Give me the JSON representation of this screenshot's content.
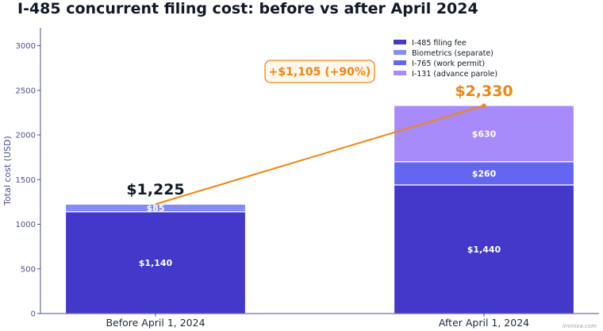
{
  "chart_data": {
    "type": "bar",
    "stacked": true,
    "title": "I-485 concurrent filing cost: before vs after April 2024",
    "xlabel": "",
    "ylabel": "Total cost (USD)",
    "ylim": [
      0,
      3200
    ],
    "yticks": [
      0,
      500,
      1000,
      1500,
      2000,
      2500,
      3000
    ],
    "grid": false,
    "legend_position": "top-right",
    "categories": [
      "Before April 1, 2024",
      "After April 1, 2024"
    ],
    "series": [
      {
        "name": "I-485 filing fee",
        "values": [
          1140,
          1440
        ],
        "labels": [
          "$1,140",
          "$1,440"
        ],
        "color": "#4338ca"
      },
      {
        "name": "Biometrics (separate)",
        "values": [
          85,
          0
        ],
        "labels": [
          "$85",
          ""
        ],
        "color": "#818cf8"
      },
      {
        "name": "I-765 (work permit)",
        "values": [
          0,
          260
        ],
        "labels": [
          "",
          "$260"
        ],
        "color": "#6366f1"
      },
      {
        "name": "I-131 (advance parole)",
        "values": [
          0,
          630
        ],
        "labels": [
          "",
          "$630"
        ],
        "color": "#a78bfa"
      }
    ],
    "totals": [
      1225,
      2330
    ],
    "total_labels": [
      "$1,225",
      "$2,330"
    ],
    "total_label_colors": [
      "#111827",
      "#f0860f"
    ],
    "annotation": {
      "text": "+$1,105 (+90%)",
      "color": "#f0860f"
    },
    "trend_color": "#f0860f",
    "axis_color": "#4c4f8f"
  },
  "watermark": "immiva.com"
}
